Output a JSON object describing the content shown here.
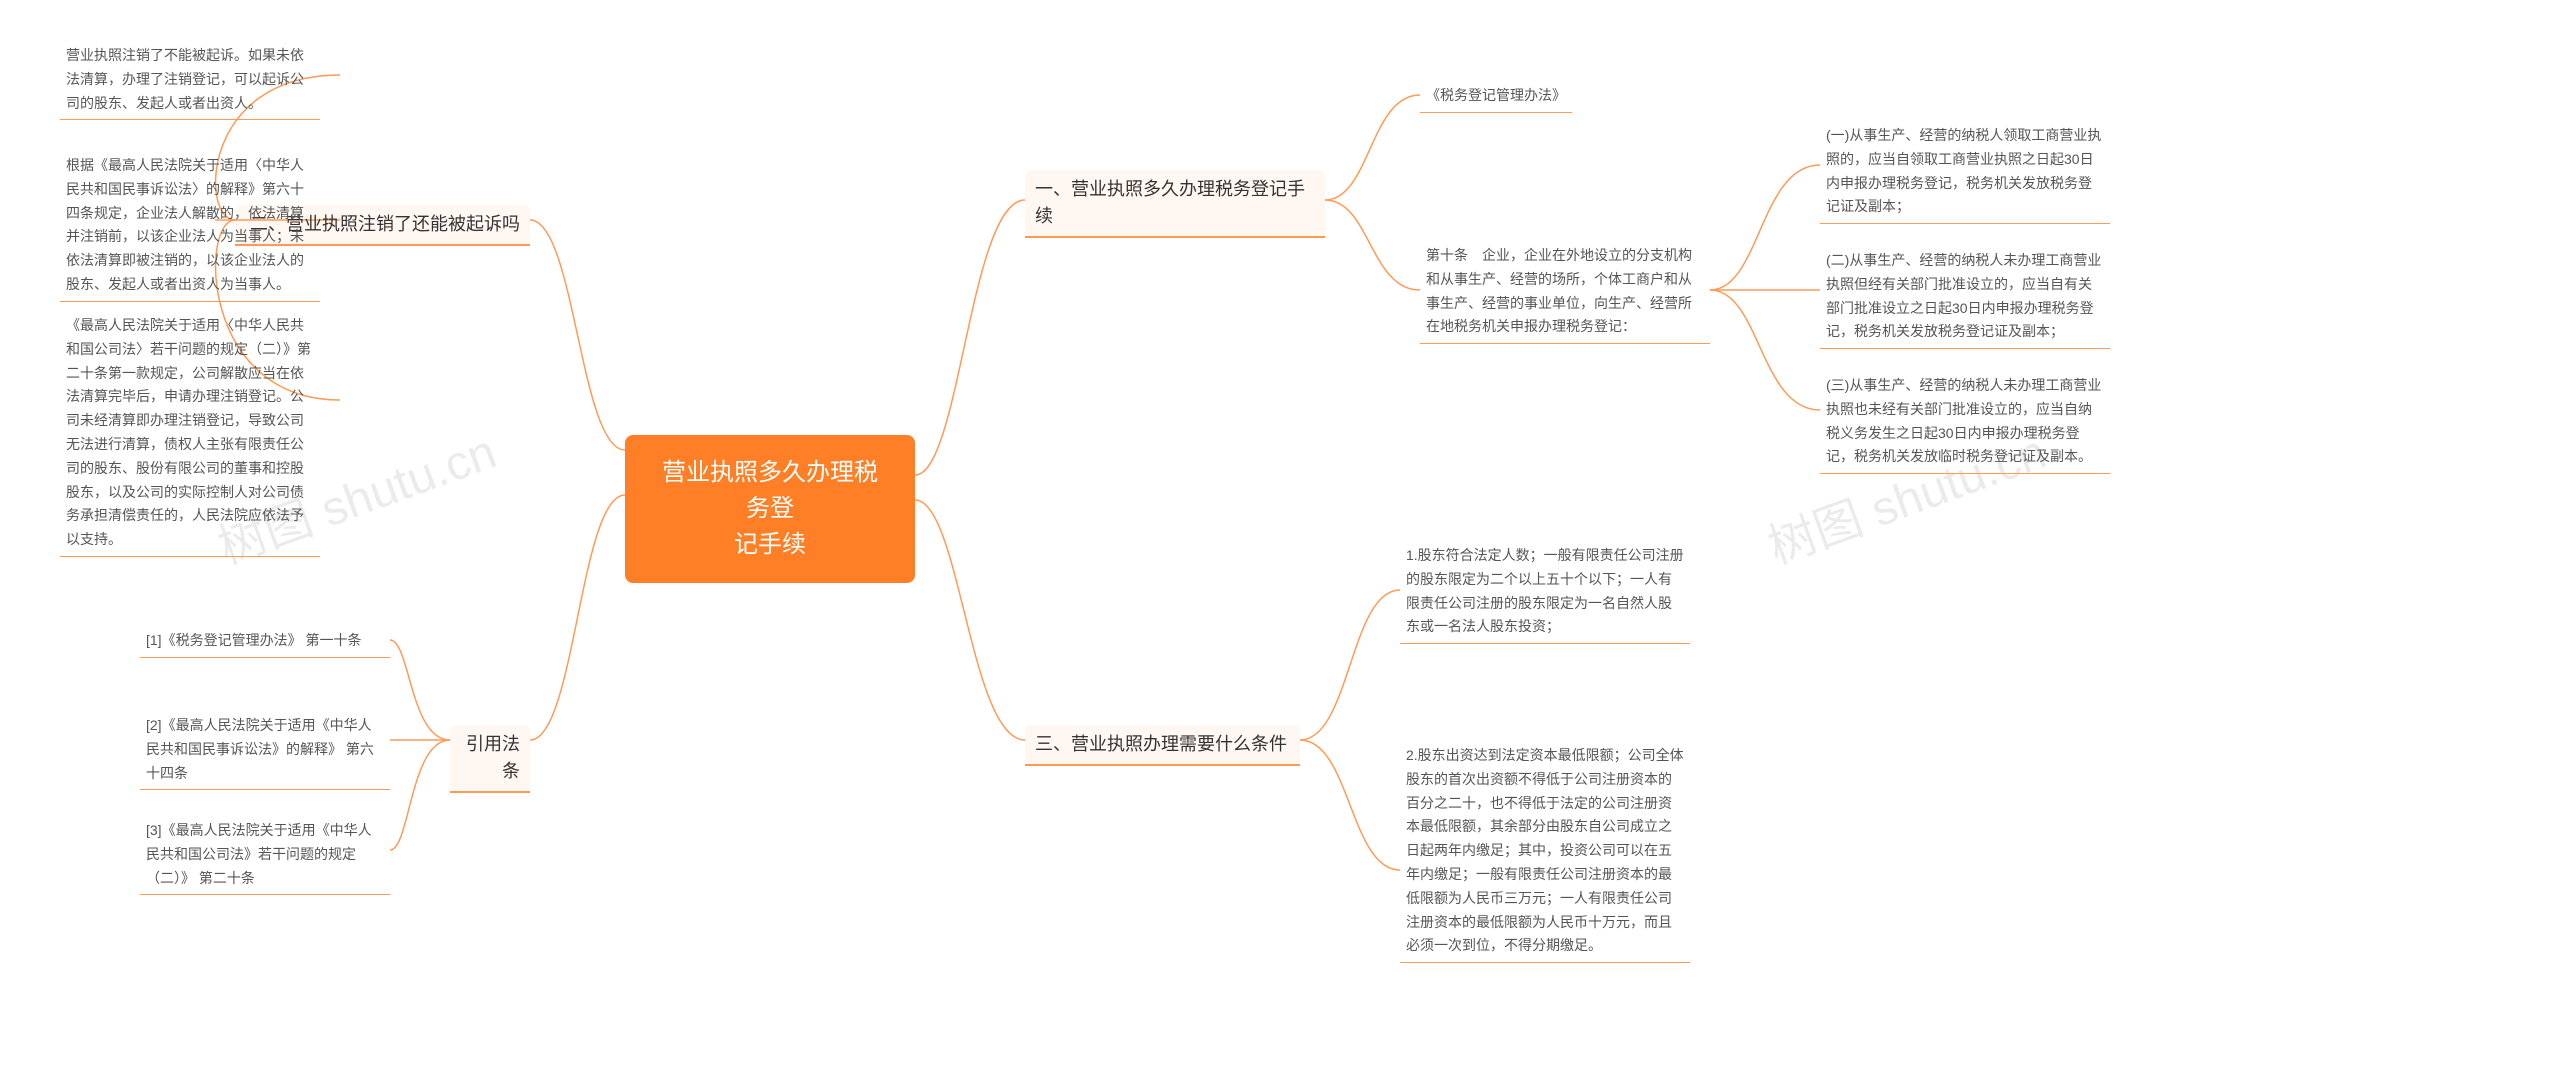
{
  "center": {
    "title": "营业执照多久办理税务登\n记手续"
  },
  "right": {
    "s1": {
      "label": "一、营业执照多久办理税务登记手\n续",
      "c1": "《税务登记管理办法》",
      "c2": "第十条　企业，企业在外地设立的分支机构和从事生产、经营的场所，个体工商户和从事生产、经营的事业单位，向生产、经营所在地税务机关申报办理税务登记：",
      "c2a": "(一)从事生产、经营的纳税人领取工商营业执照的，应当自领取工商营业执照之日起30日内申报办理税务登记，税务机关发放税务登记证及副本；",
      "c2b": "(二)从事生产、经营的纳税人未办理工商营业执照但经有关部门批准设立的，应当自有关部门批准设立之日起30日内申报办理税务登记，税务机关发放税务登记证及副本；",
      "c2c": "(三)从事生产、经营的纳税人未办理工商营业执照也未经有关部门批准设立的，应当自纳税义务发生之日起30日内申报办理税务登记，税务机关发放临时税务登记证及副本。"
    },
    "s3": {
      "label": "三、营业执照办理需要什么条件",
      "c1": "1.股东符合法定人数；一般有限责任公司注册的股东限定为二个以上五十个以下；一人有限责任公司注册的股东限定为一名自然人股东或一名法人股东投资；",
      "c2": "2.股东出资达到法定资本最低限额；公司全体股东的首次出资额不得低于公司注册资本的百分之二十，也不得低于法定的公司注册资本最低限额，其余部分由股东自公司成立之日起两年内缴足；其中，投资公司可以在五年内缴足；一般有限责任公司注册资本的最低限额为人民币三万元；一人有限责任公司注册资本的最低限额为人民币十万元，而且必须一次到位，不得分期缴足。"
    }
  },
  "left": {
    "s2": {
      "label": "二、营业执照注销了还能被起诉吗",
      "c1": "营业执照注销了不能被起诉。如果未依法清算，办理了注销登记，可以起诉公司的股东、发起人或者出资人。",
      "c2": "根据《最高人民法院关于适用〈中华人民共和国民事诉讼法〉的解释》第六十四条规定，企业法人解散的，依法清算并注销前，以该企业法人为当事人；未依法清算即被注销的，以该企业法人的股东、发起人或者出资人为当事人。",
      "c3": "《最高人民法院关于适用〈中华人民共和国公司法〉若干问题的规定（二）》第二十条第一款规定，公司解散应当在依法清算完毕后，申请办理注销登记。公司未经清算即办理注销登记，导致公司无法进行清算，债权人主张有限责任公司的股东、股份有限公司的董事和控股股东，以及公司的实际控制人对公司债务承担清偿责任的，人民法院应依法予以支持。"
    },
    "s4": {
      "label": "引用法条",
      "c1": "[1]《税务登记管理办法》 第一十条",
      "c2": "[2]《最高人民法院关于适用《中华人民共和国民事诉讼法》的解释》 第六十四条",
      "c3": "[3]《最高人民法院关于适用《中华人民共和国公司法》若干问题的规定（二）》 第二十条"
    }
  },
  "watermarks": {
    "w1": "树图 shutu.cn",
    "w2": "树图 shutu.cn"
  },
  "style": {
    "accent": "#ff7f27",
    "line": "#ff9a56",
    "bg": "#ffffff",
    "text_main": "#333333",
    "text_leaf": "#555555"
  }
}
